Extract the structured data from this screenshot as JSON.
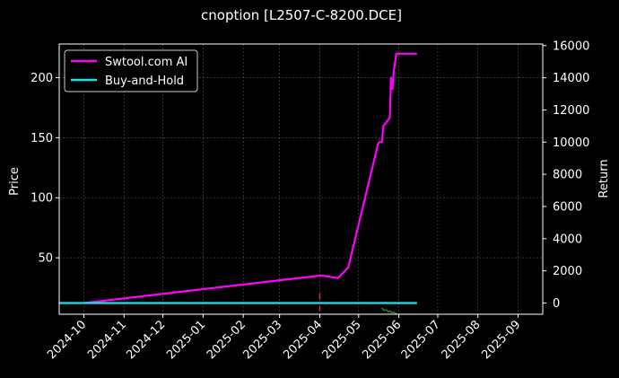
{
  "chart_data": {
    "type": "line",
    "title": "cnoption [L2507-C-8200.DCE]",
    "xlabel": "",
    "ylabel": "Price",
    "y2label": "Return",
    "grid": true,
    "legend_position": "top-left",
    "x_tick_labels": [
      "2024-10",
      "2024-11",
      "2024-12",
      "2025-01",
      "2025-02",
      "2025-03",
      "2025-04",
      "2025-05",
      "2025-06",
      "2025-07",
      "2025-08",
      "2025-09"
    ],
    "x_range": [
      "2024-09-12",
      "2025-09-20"
    ],
    "y_ticks": [
      50,
      100,
      150,
      200
    ],
    "ylim": [
      3,
      228
    ],
    "y2_ticks": [
      0,
      2000,
      4000,
      6000,
      8000,
      10000,
      12000,
      14000,
      16000
    ],
    "y2lim": [
      -700,
      16100
    ],
    "colors": {
      "background": "#000000",
      "ai": "#ff00ff",
      "buy_hold": "#22e0e8",
      "buy_marker": "#ff2020",
      "sell_marker": "#2e8b2e",
      "grid": "#5a5a5a"
    },
    "series": [
      {
        "name": "Swtool.com AI",
        "axis": "right",
        "color": "#ff00ff",
        "points": [
          [
            "2024-10-01",
            0
          ],
          [
            "2025-04-01",
            1700
          ],
          [
            "2025-04-03",
            1700
          ],
          [
            "2025-04-15",
            1550
          ],
          [
            "2025-04-23",
            2200
          ],
          [
            "2025-05-16",
            9900
          ],
          [
            "2025-05-17",
            10000
          ],
          [
            "2025-05-19",
            10000
          ],
          [
            "2025-05-20",
            11000
          ],
          [
            "2025-05-24",
            11400
          ],
          [
            "2025-05-25",
            11500
          ],
          [
            "2025-05-26",
            14000
          ],
          [
            "2025-05-27",
            13300
          ],
          [
            "2025-05-28",
            14300
          ],
          [
            "2025-05-30",
            15500
          ],
          [
            "2025-06-15",
            15500
          ]
        ]
      },
      {
        "name": "Buy-and-Hold",
        "axis": "right",
        "color": "#22e0e8",
        "points": [
          [
            "2024-09-12",
            0
          ],
          [
            "2025-06-15",
            0
          ]
        ]
      }
    ],
    "buy_markers": [
      [
        "2025-04-01",
        18
      ],
      [
        "2025-04-01",
        8
      ]
    ],
    "sell_markers": [
      [
        "2025-05-20",
        7
      ],
      [
        "2025-05-23",
        6
      ],
      [
        "2025-05-26",
        5
      ],
      [
        "2025-05-29",
        4
      ]
    ]
  }
}
